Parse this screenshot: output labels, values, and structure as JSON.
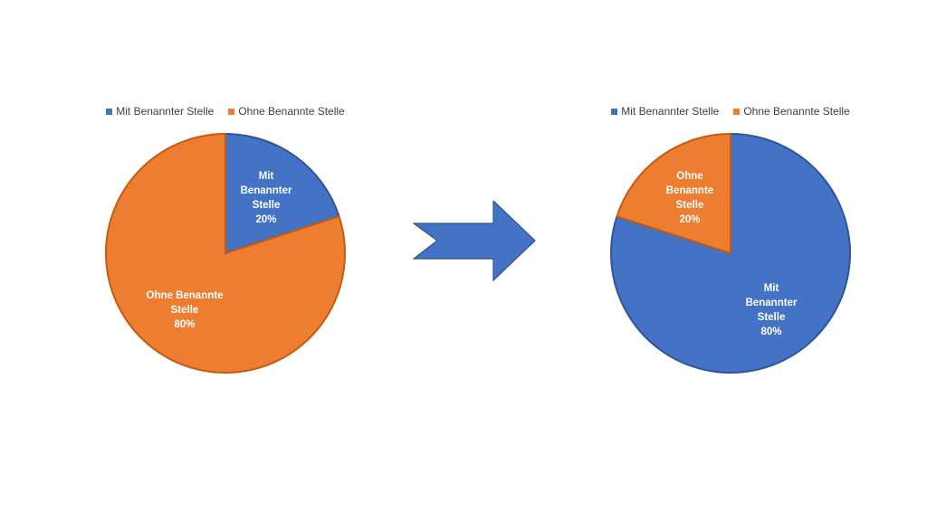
{
  "chart_data": [
    {
      "type": "pie",
      "legend_position": "top",
      "categories": [
        "Mit Benannter Stelle",
        "Ohne Benannte Stelle"
      ],
      "values": [
        20,
        80
      ],
      "data_labels": [
        "20%",
        "80%"
      ],
      "colors": [
        "#4472C4",
        "#ED7D31"
      ]
    },
    {
      "type": "pie",
      "legend_position": "top",
      "categories": [
        "Mit Benannter Stelle",
        "Ohne Benannte Stelle"
      ],
      "values": [
        80,
        20
      ],
      "data_labels": [
        "80%",
        "20%"
      ],
      "colors": [
        "#4472C4",
        "#ED7D31"
      ]
    }
  ],
  "arrow": {
    "icon": "right-arrow-icon",
    "color": "#4472C4"
  }
}
